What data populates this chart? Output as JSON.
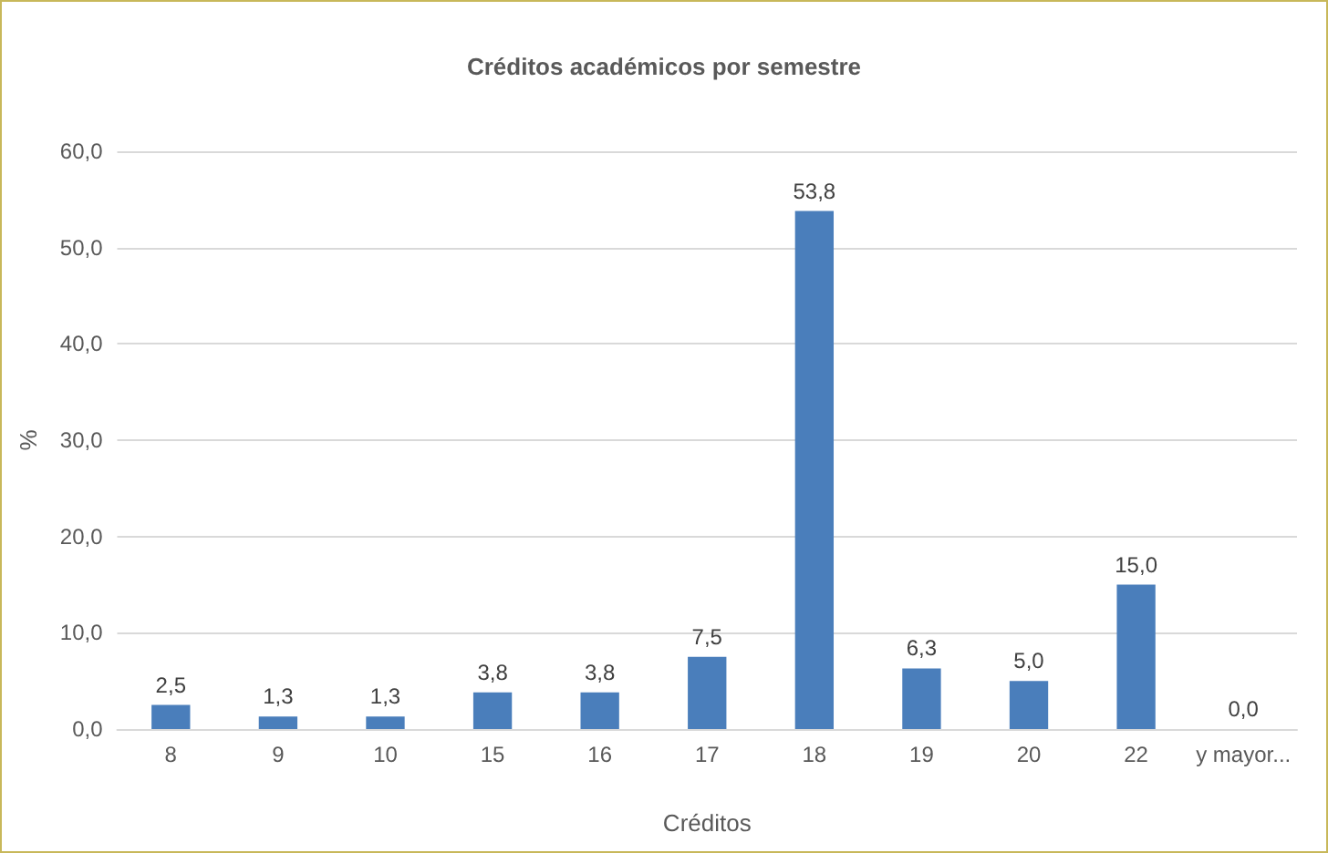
{
  "chart_data": {
    "type": "bar",
    "title": "Créditos académicos por semestre",
    "xlabel": "Créditos",
    "ylabel": "%",
    "categories": [
      "8",
      "9",
      "10",
      "15",
      "16",
      "17",
      "18",
      "19",
      "20",
      "22",
      "y mayor..."
    ],
    "values": [
      2.5,
      1.3,
      1.3,
      3.8,
      3.8,
      7.5,
      53.8,
      6.3,
      5.0,
      15.0,
      0.0
    ],
    "value_labels": [
      "2,5",
      "1,3",
      "1,3",
      "3,8",
      "3,8",
      "7,5",
      "53,8",
      "6,3",
      "5,0",
      "15,0",
      "0,0"
    ],
    "color": "#4a7ebb",
    "ylim": [
      0,
      60
    ],
    "yticks": [
      {
        "value": 0,
        "label": "0,0"
      },
      {
        "value": 10,
        "label": "10,0"
      },
      {
        "value": 20,
        "label": "20,0"
      },
      {
        "value": 30,
        "label": "30,0"
      },
      {
        "value": 40,
        "label": "40,0"
      },
      {
        "value": 50,
        "label": "50,0"
      },
      {
        "value": 60,
        "label": "60,0"
      }
    ],
    "grid": "y"
  }
}
